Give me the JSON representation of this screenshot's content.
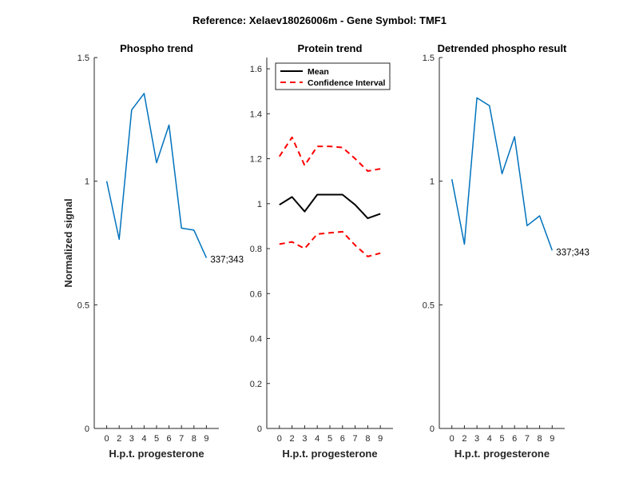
{
  "figure": {
    "suptitle": "Reference:  Xelaev18026006m - Gene Symbol:  TMF1"
  },
  "chart_data": [
    {
      "type": "line",
      "title": "Phospho trend",
      "xlabel": "H.p.t. progesterone",
      "ylabel": "Normalized signal",
      "categories": [
        "0",
        "2",
        "3",
        "4",
        "5",
        "6",
        "7",
        "8",
        "9"
      ],
      "ylim": [
        0,
        1.5
      ],
      "yticks": [
        "0",
        "0.5",
        "1",
        "1.5"
      ],
      "ytick_values": [
        0,
        0.5,
        1,
        1.5
      ],
      "series": [
        {
          "color": "#0072BD",
          "dash": "solid",
          "values": [
            1.0,
            0.765,
            1.288,
            1.355,
            1.075,
            1.227,
            0.81,
            0.802,
            0.69
          ]
        }
      ],
      "annotation": "337;343"
    },
    {
      "type": "line",
      "title": "Protein trend",
      "xlabel": "H.p.t. progesterone",
      "ylabel": "",
      "categories": [
        "0",
        "2",
        "3",
        "4",
        "5",
        "6",
        "7",
        "8",
        "9"
      ],
      "ylim": [
        0,
        1.65
      ],
      "yticks": [
        "0",
        "0.2",
        "0.4",
        "0.6",
        "0.8",
        "1",
        "1.2",
        "1.4",
        "1.6"
      ],
      "ytick_values": [
        0,
        0.2,
        0.4,
        0.6,
        0.8,
        1,
        1.2,
        1.4,
        1.6
      ],
      "legend": {
        "position": "top-left",
        "entries": [
          "Mean",
          "Confidence Interval"
        ]
      },
      "series": [
        {
          "name": "Mean",
          "color": "#000000",
          "dash": "solid",
          "values": [
            0.995,
            1.03,
            0.965,
            1.04,
            1.04,
            1.04,
            0.995,
            0.935,
            0.955
          ]
        },
        {
          "name": "Confidence Interval",
          "color": "#FF0000",
          "dash": "dashed",
          "values": [
            1.21,
            1.295,
            1.17,
            1.255,
            1.255,
            1.25,
            1.2,
            1.145,
            1.155
          ]
        },
        {
          "name": "Confidence Interval",
          "color": "#FF0000",
          "dash": "dashed",
          "values": [
            0.82,
            0.83,
            0.8,
            0.865,
            0.87,
            0.875,
            0.815,
            0.765,
            0.78
          ]
        }
      ]
    },
    {
      "type": "line",
      "title": "Detrended phospho result",
      "xlabel": "H.p.t. progesterone",
      "ylabel": "",
      "categories": [
        "0",
        "2",
        "3",
        "4",
        "5",
        "6",
        "7",
        "8",
        "9"
      ],
      "ylim": [
        0,
        1.5
      ],
      "yticks": [
        "0",
        "0.5",
        "1",
        "1.5"
      ],
      "ytick_values": [
        0,
        0.5,
        1,
        1.5
      ],
      "series": [
        {
          "color": "#0072BD",
          "dash": "solid",
          "values": [
            1.008,
            0.745,
            1.337,
            1.305,
            1.03,
            1.18,
            0.82,
            0.86,
            0.72
          ]
        }
      ],
      "annotation": "337;343"
    }
  ]
}
